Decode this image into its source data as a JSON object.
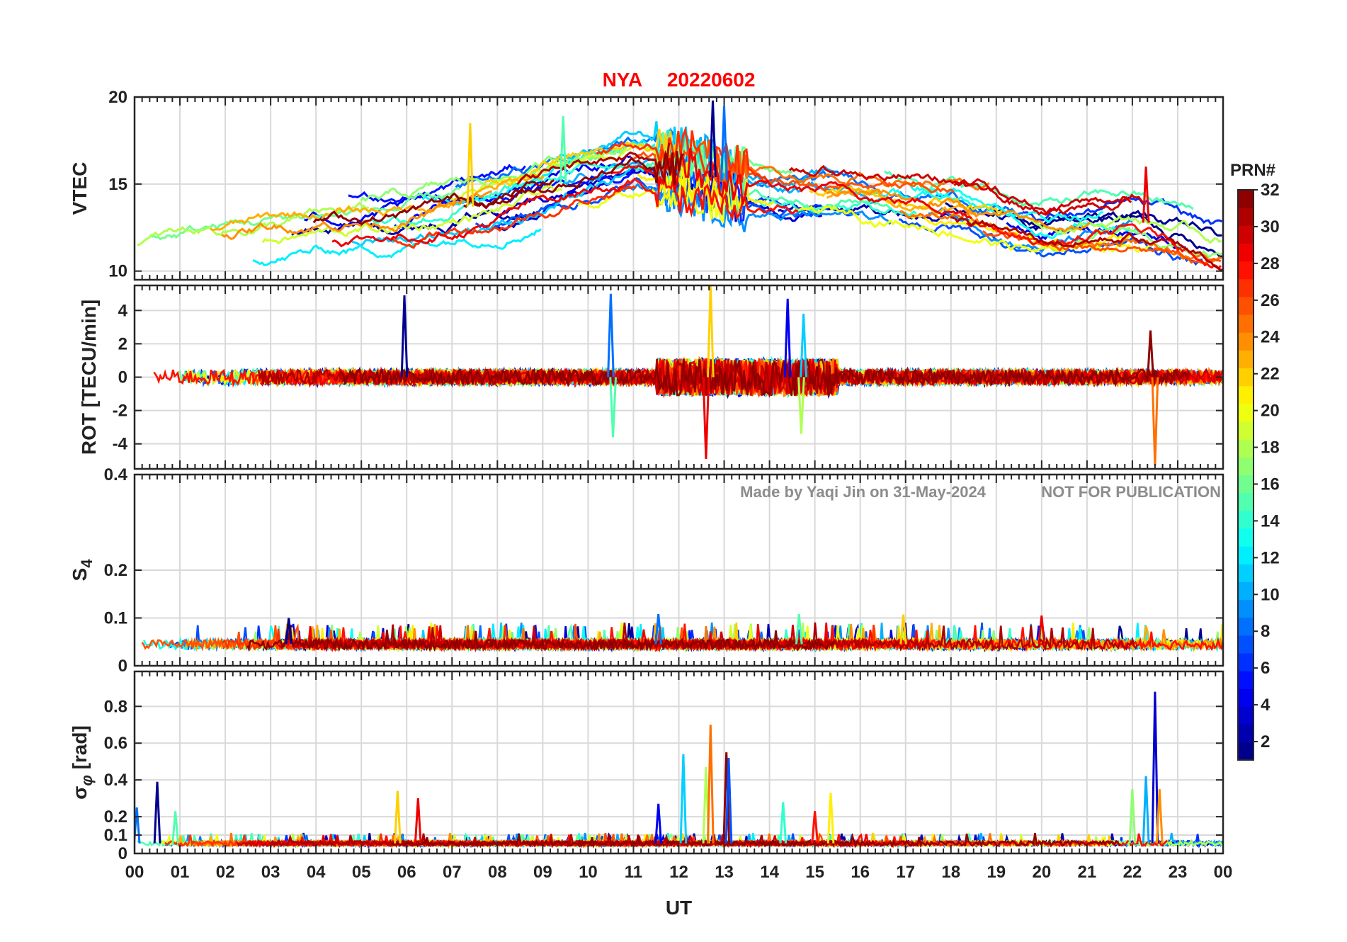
{
  "figure": {
    "title_station": "NYA",
    "title_date": "20220602",
    "xlabel": "UT",
    "watermark_author": "Made by Yaqi Jin on 31-May-2024",
    "watermark_notice": "NOT FOR PUBLICATION",
    "colorbar_label": "PRN#",
    "colorbar_ticks": [
      "2",
      "4",
      "6",
      "8",
      "10",
      "12",
      "14",
      "16",
      "18",
      "20",
      "22",
      "24",
      "26",
      "28",
      "30",
      "32"
    ],
    "colormap": "jet",
    "x_ticks": [
      "00",
      "01",
      "02",
      "03",
      "04",
      "05",
      "06",
      "07",
      "08",
      "09",
      "10",
      "11",
      "12",
      "13",
      "14",
      "15",
      "16",
      "17",
      "18",
      "19",
      "20",
      "21",
      "22",
      "23",
      "00"
    ]
  },
  "chart_data": [
    {
      "type": "line",
      "panel": "vtec",
      "ylabel": "VTEC",
      "xlim": [
        0,
        24
      ],
      "ylim": [
        9.5,
        20
      ],
      "y_ticks": [
        {
          "value": 10,
          "label": "10"
        },
        {
          "value": 15,
          "label": "15"
        },
        {
          "value": 20,
          "label": "20"
        }
      ],
      "grid": true,
      "series_by": "PRN",
      "baseline_hours": [
        0,
        2,
        4,
        6,
        8,
        10,
        11,
        12,
        13,
        14,
        16,
        18,
        20,
        22,
        24
      ],
      "baseline_values": [
        11.2,
        12.0,
        12.6,
        13.0,
        14.0,
        15.5,
        16.2,
        16.0,
        15.2,
        14.5,
        14.5,
        14.0,
        12.5,
        13.0,
        11.5
      ],
      "noise": 1.0,
      "peaks": [
        {
          "x": 12.75,
          "y": 19.8
        },
        {
          "x": 13.0,
          "y": 19.5
        },
        {
          "x": 9.45,
          "y": 18.9
        },
        {
          "x": 7.4,
          "y": 18.5
        },
        {
          "x": 22.3,
          "y": 16.0
        }
      ]
    },
    {
      "type": "line",
      "panel": "rot",
      "ylabel": "ROT [TECU/min]",
      "xlim": [
        0,
        24
      ],
      "ylim": [
        -5.5,
        5.5
      ],
      "y_ticks": [
        {
          "value": -4,
          "label": "-4"
        },
        {
          "value": -2,
          "label": "-2"
        },
        {
          "value": 0,
          "label": "0"
        },
        {
          "value": 2,
          "label": "2"
        },
        {
          "value": 4,
          "label": "4"
        }
      ],
      "grid": true,
      "series_by": "PRN",
      "baseline_hours": [
        0,
        24
      ],
      "baseline_values": [
        0,
        0
      ],
      "noise": 0.45,
      "disturbed_interval_hours": [
        11.5,
        15.5
      ],
      "peaks": [
        {
          "x": 5.95,
          "y": 4.9
        },
        {
          "x": 10.5,
          "y": 5.0
        },
        {
          "x": 10.55,
          "y": -3.6
        },
        {
          "x": 12.7,
          "y": 5.5
        },
        {
          "x": 12.6,
          "y": -4.9
        },
        {
          "x": 14.4,
          "y": 4.7
        },
        {
          "x": 14.75,
          "y": 3.8
        },
        {
          "x": 14.7,
          "y": -3.4
        },
        {
          "x": 22.5,
          "y": -5.3
        },
        {
          "x": 22.4,
          "y": 2.8
        }
      ]
    },
    {
      "type": "line",
      "panel": "s4",
      "ylabel": "S4",
      "xlim": [
        0,
        24
      ],
      "ylim": [
        0,
        0.4
      ],
      "y_ticks": [
        {
          "value": 0,
          "label": "0"
        },
        {
          "value": 0.1,
          "label": "0.1"
        },
        {
          "value": 0.2,
          "label": "0.2"
        },
        {
          "value": 0.4,
          "label": "0.4"
        }
      ],
      "grid": true,
      "series_by": "PRN",
      "baseline_hours": [
        0,
        24
      ],
      "baseline_values": [
        0.045,
        0.045
      ],
      "noise": 0.02,
      "peaks": [
        {
          "x": 3.4,
          "y": 0.1
        },
        {
          "x": 11.55,
          "y": 0.108
        },
        {
          "x": 14.65,
          "y": 0.108
        },
        {
          "x": 16.95,
          "y": 0.107
        },
        {
          "x": 20.0,
          "y": 0.105
        }
      ]
    },
    {
      "type": "line",
      "panel": "sigma_phi",
      "ylabel": "σφ [rad]",
      "xlim": [
        0,
        24
      ],
      "ylim": [
        0,
        0.99
      ],
      "y_ticks": [
        {
          "value": 0,
          "label": "0"
        },
        {
          "value": 0.1,
          "label": "0.1"
        },
        {
          "value": 0.2,
          "label": "0.2"
        },
        {
          "value": 0.4,
          "label": "0.4"
        },
        {
          "value": 0.6,
          "label": "0.6"
        },
        {
          "value": 0.8,
          "label": "0.8"
        }
      ],
      "grid": true,
      "series_by": "PRN",
      "baseline_hours": [
        0,
        24
      ],
      "baseline_values": [
        0.055,
        0.055
      ],
      "noise": 0.025,
      "peaks": [
        {
          "x": 0.5,
          "y": 0.39
        },
        {
          "x": 0.05,
          "y": 0.25
        },
        {
          "x": 0.9,
          "y": 0.23
        },
        {
          "x": 5.8,
          "y": 0.34
        },
        {
          "x": 6.25,
          "y": 0.3
        },
        {
          "x": 11.55,
          "y": 0.27
        },
        {
          "x": 12.1,
          "y": 0.54
        },
        {
          "x": 12.6,
          "y": 0.47
        },
        {
          "x": 12.7,
          "y": 0.7
        },
        {
          "x": 13.05,
          "y": 0.55
        },
        {
          "x": 13.1,
          "y": 0.52
        },
        {
          "x": 14.3,
          "y": 0.28
        },
        {
          "x": 15.35,
          "y": 0.33
        },
        {
          "x": 15.0,
          "y": 0.23
        },
        {
          "x": 22.5,
          "y": 0.88
        },
        {
          "x": 22.3,
          "y": 0.42
        },
        {
          "x": 22.0,
          "y": 0.35
        },
        {
          "x": 22.6,
          "y": 0.35
        }
      ]
    }
  ]
}
